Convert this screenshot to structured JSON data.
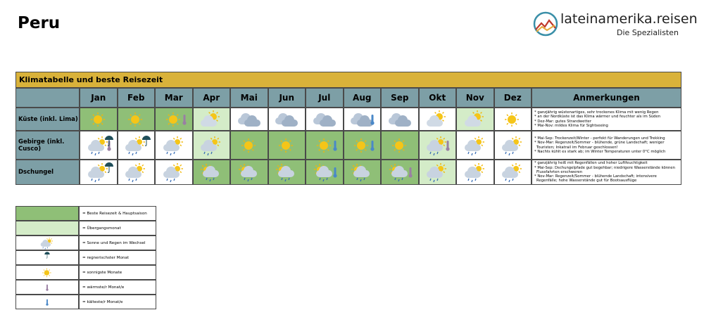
{
  "header": {
    "title": "Peru",
    "logo_name": "lateinamerika.reisen",
    "logo_tagline": "Die Spezialisten"
  },
  "table": {
    "title": "Klimatabelle und beste Reisezeit",
    "columns": [
      "Jan",
      "Feb",
      "Mar",
      "Apr",
      "Mai",
      "Jun",
      "Jul",
      "Aug",
      "Sep",
      "Okt",
      "Nov",
      "Dez",
      "Anmerkungen"
    ],
    "rows": [
      {
        "label": "Küste (inkl. Lima)",
        "notes": [
          "* ganzjährig wüstenartiges, sehr trockenes Klima mit wenig Regen",
          "* an der Nordküste ist das Klima wärmer und feuchter als im Süden",
          "* Dez-Mar: gutes Strandwetter",
          "* Mai-Nov: mildes Klima für Sightseeing"
        ]
      },
      {
        "label": "Gebirge (inkl. Cusco)",
        "notes": [
          "* Mai-Sep: Trockenzeit/Winter - perfekt für Wanderungen und Trekking",
          "* Nov-Mar: Regenzeit/Sommer - blühende, grüne Landschaft; weniger Touristen; Inkatrail im Februar geschlossen!",
          "* Nachts kühlt es stark ab; im Winter Temperaturen unter 0°C möglich"
        ]
      },
      {
        "label": "Dschungel",
        "notes": [
          "* ganzjährig heiß mit Regenfällen und hoher Luftfeuchtigkeit",
          "* Mai-Sep: Dschungelpfade gut begehbar; niedrigere Wasserstände können Flussfahrten erschweren",
          "* Nov-Mar: Regenzeit/Sommer - blühende Landschaft;  intensivere Regenfälle; hohe Wasserstände gut für Bootsausflüge"
        ]
      }
    ]
  },
  "legend": [
    "= Beste Reisezeit & Hauptsaison",
    "= Übergangsmonat",
    "= Sonne und Regen im Wechsel",
    "= regnerischster Monat",
    "= sonnigste Monate",
    "= wärmste/r Monat/e",
    "= kälteste/r Monat/e"
  ]
}
